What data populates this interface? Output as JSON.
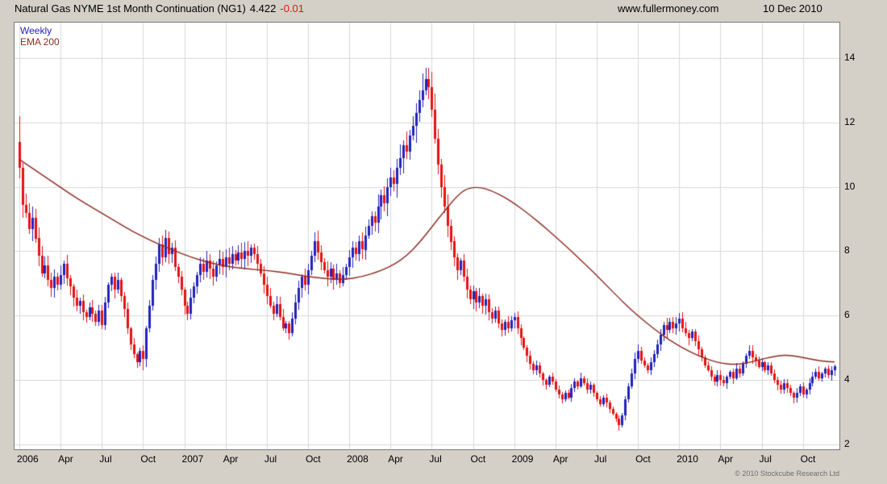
{
  "header": {
    "title": "Natural Gas NYME 1st Month Continuation (NG1)",
    "last_price": "4.422",
    "change": "-0.01",
    "website": "www.fullermoney.com",
    "date": "10 Dec 2010"
  },
  "legend": {
    "series": "Weekly",
    "ema": "EMA 200"
  },
  "footer": {
    "copyright": "© 2010 Stockcube Research Ltd"
  },
  "colors": {
    "up": "#2222bb",
    "down": "#e51212",
    "ema": "#8f2a20",
    "grid": "#d9d9d9",
    "frame": "#7a7a7a",
    "bg": "#d4d0c8",
    "plot_bg": "#ffffff",
    "change_text": "#e51212",
    "weekly_label": "#2222bb"
  },
  "chart_data": {
    "type": "candlestick",
    "title": "Natural Gas NYME 1st Month Continuation (NG1) weekly with 200-week EMA",
    "interval": "weekly",
    "ylim": [
      1.85,
      15.1
    ],
    "y_ticks": [
      2,
      4,
      6,
      8,
      10,
      12,
      14
    ],
    "x_ticks": [
      {
        "week": 0,
        "label": "2006"
      },
      {
        "week": 13,
        "label": "Apr"
      },
      {
        "week": 26,
        "label": "Jul"
      },
      {
        "week": 39,
        "label": "Oct"
      },
      {
        "week": 52,
        "label": "2007"
      },
      {
        "week": 65,
        "label": "Apr"
      },
      {
        "week": 78,
        "label": "Jul"
      },
      {
        "week": 91,
        "label": "Oct"
      },
      {
        "week": 104,
        "label": "2008"
      },
      {
        "week": 117,
        "label": "Apr"
      },
      {
        "week": 130,
        "label": "Jul"
      },
      {
        "week": 143,
        "label": "Oct"
      },
      {
        "week": 156,
        "label": "2009"
      },
      {
        "week": 169,
        "label": "Apr"
      },
      {
        "week": 182,
        "label": "Jul"
      },
      {
        "week": 195,
        "label": "Oct"
      },
      {
        "week": 208,
        "label": "2010"
      },
      {
        "week": 221,
        "label": "Apr"
      },
      {
        "week": 234,
        "label": "Jul"
      },
      {
        "week": 247,
        "label": "Oct"
      }
    ],
    "first_open": 11.4,
    "weekly_closes": [
      10.6,
      9.45,
      9.2,
      8.7,
      9.05,
      8.4,
      7.85,
      7.3,
      7.55,
      7.1,
      6.85,
      7.2,
      6.95,
      7.25,
      7.6,
      7.15,
      6.9,
      6.55,
      6.3,
      6.45,
      6.1,
      5.95,
      6.25,
      6.05,
      5.8,
      6.15,
      5.7,
      6.4,
      6.95,
      7.2,
      6.8,
      7.1,
      6.6,
      6.2,
      5.6,
      5.1,
      4.8,
      4.55,
      4.9,
      4.65,
      5.6,
      6.3,
      7.1,
      7.6,
      8.2,
      7.8,
      8.4,
      7.9,
      8.1,
      7.5,
      7.2,
      6.8,
      6.3,
      6.05,
      6.55,
      6.9,
      7.25,
      7.6,
      7.35,
      7.7,
      7.45,
      7.2,
      7.55,
      7.75,
      7.5,
      7.8,
      7.6,
      7.9,
      7.7,
      7.95,
      7.75,
      8.0,
      7.85,
      8.1,
      7.9,
      7.6,
      7.3,
      6.95,
      6.6,
      6.3,
      6.05,
      6.35,
      5.95,
      5.6,
      5.75,
      5.45,
      5.9,
      6.4,
      6.85,
      7.2,
      6.95,
      7.4,
      7.85,
      8.3,
      7.95,
      7.65,
      7.4,
      7.2,
      7.45,
      7.1,
      7.3,
      7.0,
      7.25,
      7.5,
      7.8,
      8.1,
      7.9,
      8.3,
      8.05,
      8.5,
      8.8,
      9.1,
      8.9,
      9.4,
      9.75,
      9.5,
      10.0,
      10.3,
      10.1,
      10.6,
      10.9,
      11.3,
      11.1,
      11.6,
      11.9,
      12.3,
      12.7,
      13.0,
      13.35,
      13.1,
      12.4,
      11.5,
      10.7,
      10.0,
      9.4,
      8.8,
      8.3,
      7.8,
      7.4,
      7.7,
      7.2,
      6.8,
      6.5,
      6.75,
      6.4,
      6.6,
      6.3,
      6.5,
      6.1,
      5.9,
      6.15,
      5.75,
      5.55,
      5.8,
      5.6,
      5.85,
      5.95,
      5.6,
      5.3,
      5.0,
      4.75,
      4.5,
      4.3,
      4.45,
      4.2,
      4.0,
      3.85,
      4.1,
      3.95,
      3.7,
      3.55,
      3.4,
      3.6,
      3.45,
      3.75,
      3.95,
      3.8,
      4.05,
      3.9,
      3.7,
      3.85,
      3.6,
      3.4,
      3.25,
      3.45,
      3.3,
      3.1,
      2.95,
      2.8,
      2.6,
      2.9,
      3.4,
      3.8,
      4.2,
      4.65,
      4.9,
      4.6,
      4.45,
      4.3,
      4.55,
      4.8,
      5.1,
      5.4,
      5.7,
      5.55,
      5.8,
      5.6,
      5.75,
      5.9,
      5.6,
      5.45,
      5.3,
      5.5,
      5.2,
      4.95,
      4.7,
      4.45,
      4.3,
      4.1,
      3.95,
      4.15,
      4.0,
      3.9,
      4.1,
      4.25,
      4.05,
      4.35,
      4.2,
      4.5,
      4.75,
      4.9,
      4.7,
      4.6,
      4.4,
      4.55,
      4.3,
      4.45,
      4.2,
      4.0,
      3.85,
      3.7,
      3.9,
      3.75,
      3.6,
      3.45,
      3.6,
      3.8,
      3.55,
      3.7,
      3.9,
      4.1,
      4.25,
      4.05,
      4.2,
      4.35,
      4.15,
      4.3,
      4.422
    ],
    "overrides": {
      "0": {
        "high": 12.19
      },
      "37": {
        "low": 4.38
      },
      "39": {
        "low": 4.32
      },
      "128": {
        "high": 13.69
      },
      "189": {
        "low": 2.42
      },
      "208": {
        "high": 6.08
      },
      "244": {
        "low": 3.28
      }
    },
    "ema200": [
      [
        0,
        10.85
      ],
      [
        6,
        10.45
      ],
      [
        12,
        10.05
      ],
      [
        18,
        9.65
      ],
      [
        24,
        9.3
      ],
      [
        30,
        8.95
      ],
      [
        36,
        8.6
      ],
      [
        42,
        8.3
      ],
      [
        48,
        8.05
      ],
      [
        54,
        7.82
      ],
      [
        60,
        7.64
      ],
      [
        66,
        7.52
      ],
      [
        72,
        7.45
      ],
      [
        78,
        7.4
      ],
      [
        84,
        7.33
      ],
      [
        90,
        7.23
      ],
      [
        96,
        7.15
      ],
      [
        102,
        7.12
      ],
      [
        108,
        7.2
      ],
      [
        114,
        7.4
      ],
      [
        118,
        7.58
      ],
      [
        122,
        7.85
      ],
      [
        126,
        8.25
      ],
      [
        130,
        8.75
      ],
      [
        134,
        9.25
      ],
      [
        138,
        9.72
      ],
      [
        141,
        9.95
      ],
      [
        145,
        10.0
      ],
      [
        149,
        9.87
      ],
      [
        153,
        9.68
      ],
      [
        157,
        9.42
      ],
      [
        161,
        9.12
      ],
      [
        165,
        8.8
      ],
      [
        169,
        8.45
      ],
      [
        173,
        8.1
      ],
      [
        177,
        7.72
      ],
      [
        181,
        7.35
      ],
      [
        185,
        6.95
      ],
      [
        189,
        6.55
      ],
      [
        193,
        6.17
      ],
      [
        197,
        5.83
      ],
      [
        201,
        5.52
      ],
      [
        205,
        5.24
      ],
      [
        209,
        5.0
      ],
      [
        213,
        4.8
      ],
      [
        217,
        4.64
      ],
      [
        221,
        4.53
      ],
      [
        225,
        4.48
      ],
      [
        229,
        4.52
      ],
      [
        233,
        4.62
      ],
      [
        237,
        4.72
      ],
      [
        241,
        4.78
      ],
      [
        245,
        4.74
      ],
      [
        249,
        4.66
      ],
      [
        253,
        4.59
      ],
      [
        257,
        4.56
      ]
    ]
  }
}
